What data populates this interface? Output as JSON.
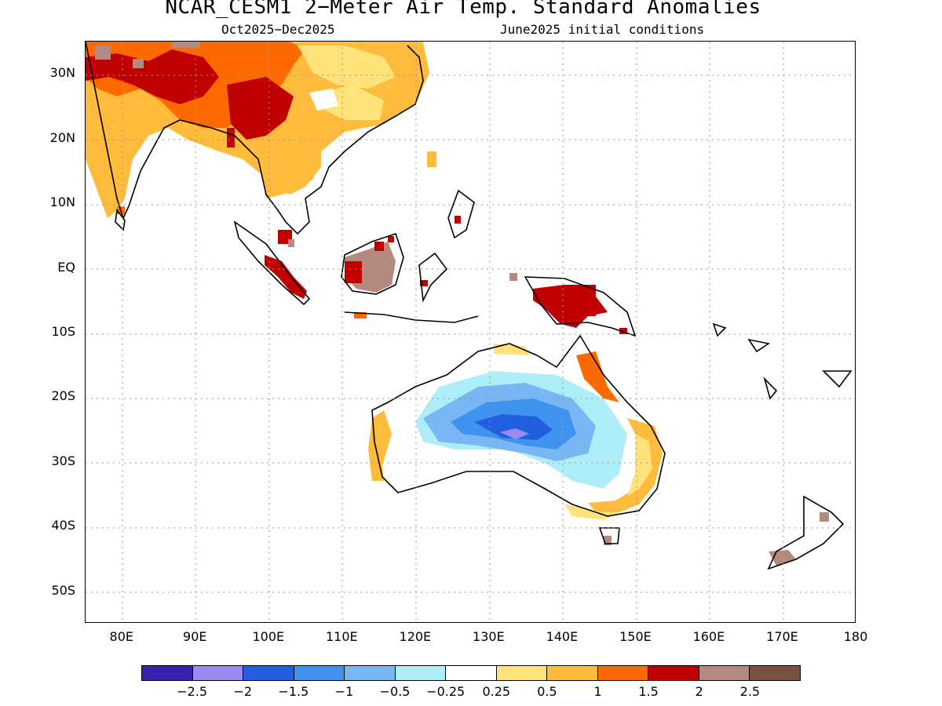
{
  "title": "NCAR_CESM1 2−Meter Air Temp. Standard Anomalies",
  "subtitle_left": "Oct2025−Dec2025",
  "subtitle_right": "June2025 initial conditions",
  "lat_ticks": [
    {
      "value": 30,
      "label": "30N"
    },
    {
      "value": 20,
      "label": "20N"
    },
    {
      "value": 10,
      "label": "10N"
    },
    {
      "value": 0,
      "label": "EQ"
    },
    {
      "value": -10,
      "label": "10S"
    },
    {
      "value": -20,
      "label": "20S"
    },
    {
      "value": -30,
      "label": "30S"
    },
    {
      "value": -40,
      "label": "40S"
    },
    {
      "value": -50,
      "label": "50S"
    }
  ],
  "lon_ticks": [
    {
      "value": 80,
      "label": "80E"
    },
    {
      "value": 90,
      "label": "90E"
    },
    {
      "value": 100,
      "label": "100E"
    },
    {
      "value": 110,
      "label": "110E"
    },
    {
      "value": 120,
      "label": "120E"
    },
    {
      "value": 130,
      "label": "130E"
    },
    {
      "value": 140,
      "label": "140E"
    },
    {
      "value": 150,
      "label": "150E"
    },
    {
      "value": 160,
      "label": "160E"
    },
    {
      "value": 170,
      "label": "170E"
    },
    {
      "value": 180,
      "label": "180"
    }
  ],
  "map_extent": {
    "lon": [
      75,
      180
    ],
    "lat": [
      -55,
      35
    ]
  },
  "colorbar": {
    "colors": [
      "#3a22b0",
      "#9b8af0",
      "#2060e0",
      "#3f93ee",
      "#78b6f4",
      "#aeeef8",
      "#ffffff",
      "#ffe27a",
      "#ffbb3c",
      "#ff6a00",
      "#c00000",
      "#b48a80",
      "#7a5040"
    ],
    "labels": [
      "−2.5",
      "−2",
      "−1.5",
      "−1",
      "−0.5",
      "−0.25",
      "0.25",
      "0.5",
      "1",
      "1.5",
      "2",
      "2.5"
    ]
  }
}
